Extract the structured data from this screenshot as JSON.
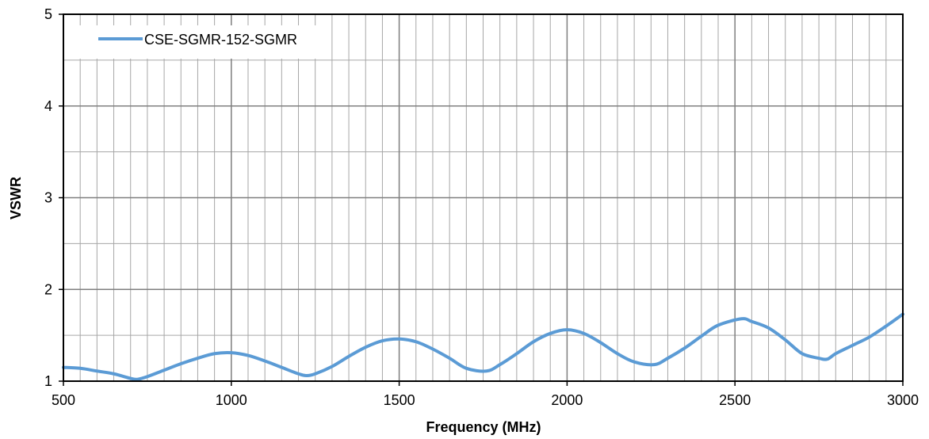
{
  "chart_data": {
    "type": "line",
    "title": "",
    "xlabel": "Frequency (MHz)",
    "ylabel": "VSWR",
    "xlim": [
      500,
      3000
    ],
    "ylim": [
      1,
      5
    ],
    "xticks": [
      "500",
      "1000",
      "1500",
      "2000",
      "2500",
      "3000"
    ],
    "yticks": [
      "1",
      "2",
      "3",
      "4",
      "5"
    ],
    "grid": true,
    "legend_position": "top-left",
    "series": [
      {
        "name": "CSE-SGMR-152-SGMR",
        "color": "#5b9bd5",
        "x": [
          500,
          550,
          600,
          650,
          700,
          720,
          750,
          800,
          850,
          900,
          950,
          1000,
          1050,
          1100,
          1150,
          1200,
          1225,
          1250,
          1300,
          1350,
          1400,
          1450,
          1500,
          1550,
          1600,
          1650,
          1700,
          1760,
          1800,
          1850,
          1900,
          1950,
          2000,
          2050,
          2100,
          2150,
          2200,
          2260,
          2300,
          2350,
          2400,
          2450,
          2520,
          2550,
          2600,
          2650,
          2700,
          2750,
          2775,
          2800,
          2850,
          2900,
          2950,
          3000
        ],
        "y": [
          1.15,
          1.14,
          1.11,
          1.08,
          1.03,
          1.02,
          1.05,
          1.12,
          1.19,
          1.25,
          1.3,
          1.31,
          1.28,
          1.22,
          1.15,
          1.08,
          1.06,
          1.08,
          1.16,
          1.27,
          1.37,
          1.44,
          1.46,
          1.43,
          1.35,
          1.25,
          1.14,
          1.11,
          1.18,
          1.3,
          1.43,
          1.52,
          1.56,
          1.52,
          1.42,
          1.3,
          1.21,
          1.18,
          1.25,
          1.36,
          1.49,
          1.61,
          1.68,
          1.65,
          1.58,
          1.45,
          1.3,
          1.25,
          1.24,
          1.3,
          1.39,
          1.48,
          1.6,
          1.73
        ]
      }
    ]
  }
}
